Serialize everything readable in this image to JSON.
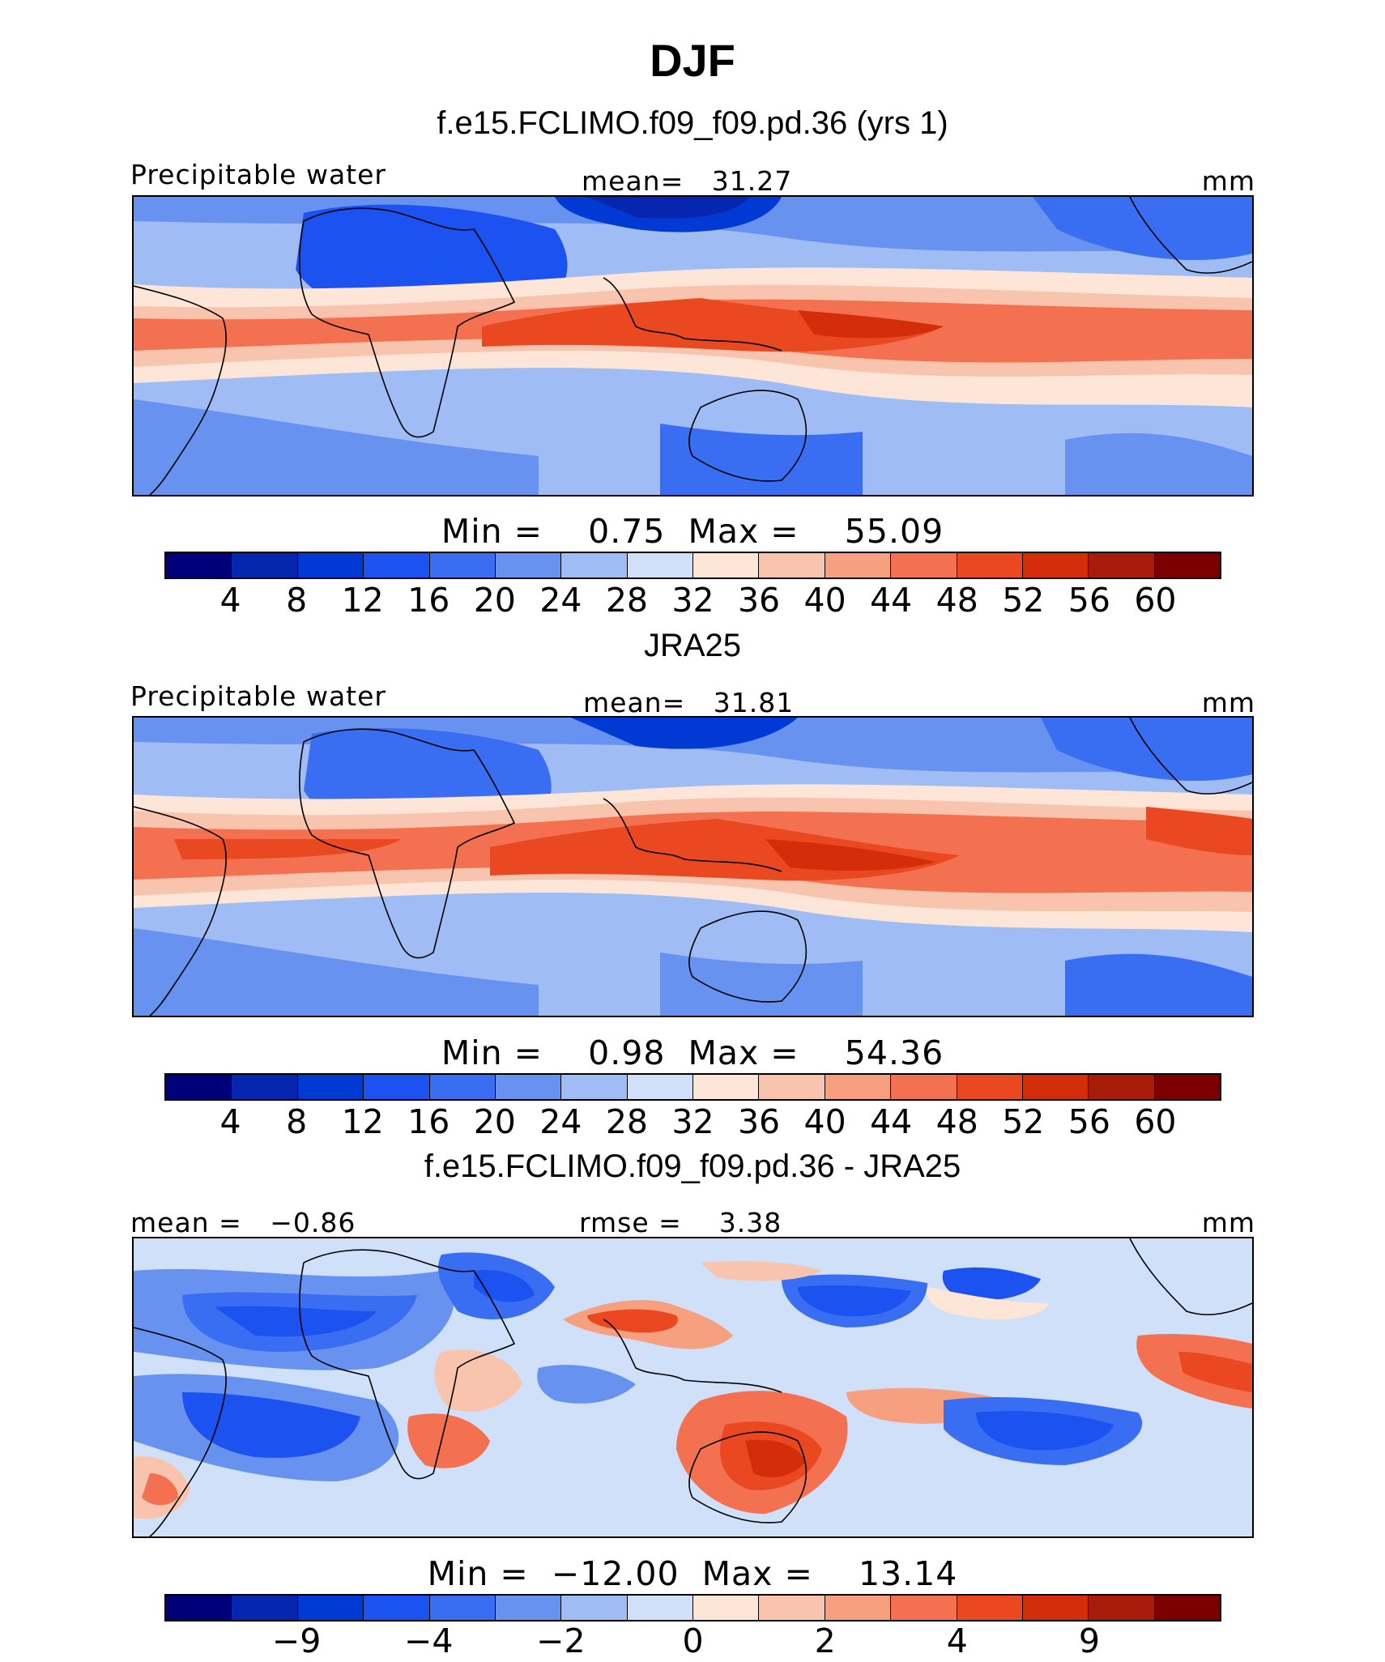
{
  "title": "DJF",
  "colors": {
    "abs_scale": [
      "#00007a",
      "#0726b0",
      "#0039d4",
      "#1b52f0",
      "#3a6ef2",
      "#6892f0",
      "#a0bcf4",
      "#cfe0f8",
      "#fde6d8",
      "#f9c4ad",
      "#f6a07f",
      "#f37150",
      "#ea4820",
      "#d42d0a",
      "#a81c0a",
      "#7c0000"
    ],
    "diff_scale": [
      "#00007a",
      "#0726b0",
      "#0039d4",
      "#1b52f0",
      "#3a6ef2",
      "#6892f0",
      "#a0bcf4",
      "#cfe0f8",
      "#fde6d8",
      "#f9c4ad",
      "#f6a07f",
      "#f37150",
      "#ea4820",
      "#d42d0a",
      "#a81c0a",
      "#7c0000"
    ]
  },
  "chart_data": [
    {
      "type": "heatmap",
      "title": "f.e15.FCLIMO.f09_f09.pd.36 (yrs 1)",
      "left_label": "Precipitable water",
      "center_label": "mean=",
      "center_value": "31.27",
      "units": "mm",
      "min_label": "Min  =",
      "min_value": "0.75",
      "max_label": "Max  =",
      "max_value": "55.09",
      "colorbar_ticks": [
        "4",
        "8",
        "12",
        "16",
        "20",
        "24",
        "28",
        "32",
        "36",
        "40",
        "44",
        "48",
        "52",
        "56",
        "60"
      ],
      "field_mean": 31.27,
      "field_min": 0.75,
      "field_max": 55.09
    },
    {
      "type": "heatmap",
      "title": "JRA25",
      "left_label": "Precipitable water",
      "center_label": "mean=",
      "center_value": "31.81",
      "units": "mm",
      "min_label": "Min  =",
      "min_value": "0.98",
      "max_label": "Max  =",
      "max_value": "54.36",
      "colorbar_ticks": [
        "4",
        "8",
        "12",
        "16",
        "20",
        "24",
        "28",
        "32",
        "36",
        "40",
        "44",
        "48",
        "52",
        "56",
        "60"
      ],
      "field_mean": 31.81,
      "field_min": 0.98,
      "field_max": 54.36
    },
    {
      "type": "heatmap",
      "title": "f.e15.FCLIMO.f09_f09.pd.36 - JRA25",
      "left_label": "mean =",
      "left_value": "−0.86",
      "center_label": "rmse =",
      "center_value": "3.38",
      "units": "mm",
      "min_label": "Min = ",
      "min_value": "−12.00",
      "max_label": "Max =",
      "max_value": "13.14",
      "colorbar_ticks": [
        "−9",
        "−4",
        "−2",
        "0",
        "2",
        "4",
        "9"
      ],
      "field_mean": -0.86,
      "field_rmse": 3.38,
      "field_min": -12.0,
      "field_max": 13.14
    }
  ]
}
